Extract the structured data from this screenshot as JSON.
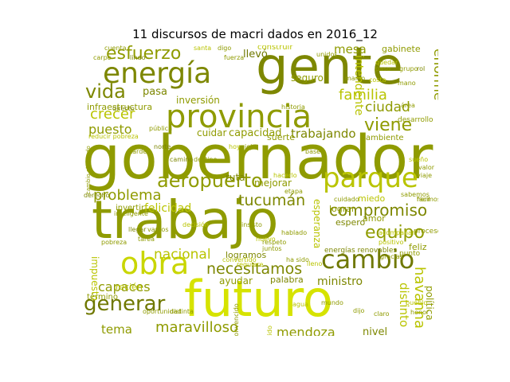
{
  "figure": {
    "title": "11 discursos de macri dados en 2016_12"
  },
  "words": [
    {
      "text": "gobernador",
      "color": "#8f9b00"
    },
    {
      "text": "trabajo",
      "color": "#8f9b00"
    },
    {
      "text": "gente",
      "color": "#7d8700"
    },
    {
      "text": "futuro",
      "color": "#d6e300"
    },
    {
      "text": "provincia",
      "color": "#8f9b00"
    },
    {
      "text": "energía",
      "color": "#7d8700"
    },
    {
      "text": "parque",
      "color": "#b9c400"
    },
    {
      "text": "obra",
      "color": "#c9d600"
    },
    {
      "text": "cambio",
      "color": "#6f7800"
    },
    {
      "text": "aeropuerto",
      "color": "#8f9b00"
    },
    {
      "text": "generar",
      "color": "#6f7800"
    },
    {
      "text": "esfuerzo",
      "color": "#8f9b00"
    },
    {
      "text": "vida",
      "color": "#7d8700"
    },
    {
      "text": "viene",
      "color": "#8f9b00"
    },
    {
      "text": "equipo",
      "color": "#8f9b00"
    },
    {
      "text": "compromiso",
      "color": "#7d8700"
    },
    {
      "text": "tucumán",
      "color": "#7d8700"
    },
    {
      "text": "necesitamos",
      "color": "#7d8700"
    },
    {
      "text": "problema",
      "color": "#8f9b00"
    },
    {
      "text": "maravilloso",
      "color": "#8f9b00"
    },
    {
      "text": "familia",
      "color": "#b9c400"
    },
    {
      "text": "crecer",
      "color": "#b9c400"
    },
    {
      "text": "nacional",
      "color": "#b9c400"
    },
    {
      "text": "ciudad",
      "color": "#8f9b00"
    },
    {
      "text": "enorme",
      "color": "#8f9b00"
    },
    {
      "text": "capaces",
      "color": "#8f9b00"
    },
    {
      "text": "mendoza",
      "color": "#8f9b00"
    },
    {
      "text": "ministro",
      "color": "#7d8700"
    },
    {
      "text": "tema",
      "color": "#8f9b00"
    },
    {
      "text": "puesto",
      "color": "#8f9b00"
    },
    {
      "text": "capacidad",
      "color": "#8f9b00"
    },
    {
      "text": "trabajando",
      "color": "#7d8700"
    },
    {
      "text": "inversión",
      "color": "#8f9b00"
    },
    {
      "text": "pasa",
      "color": "#7d8700"
    },
    {
      "text": "infraestructura",
      "color": "#8f9b00"
    },
    {
      "text": "llevó",
      "color": "#6f7800"
    },
    {
      "text": "mesa",
      "color": "#8f9b00"
    },
    {
      "text": "seguro",
      "color": "#8f9b00"
    },
    {
      "text": "gabinete",
      "color": "#8f9b00"
    },
    {
      "text": "intendente",
      "color": "#b9c400"
    },
    {
      "text": "claramente",
      "color": "#8f9b00"
    },
    {
      "text": "cuidar",
      "color": "#8f9b00"
    },
    {
      "text": "felicidad",
      "color": "#b9c400"
    },
    {
      "text": "mejorar",
      "color": "#8f9b00"
    },
    {
      "text": "ruta",
      "color": "#7d8700"
    },
    {
      "text": "esperanza",
      "color": "#b9c400"
    },
    {
      "text": "havanna",
      "color": "#b9c400"
    },
    {
      "text": "distinto",
      "color": "#b9c400"
    },
    {
      "text": "política",
      "color": "#8f9b00"
    },
    {
      "text": "responsable",
      "color": "#8f9b00"
    },
    {
      "text": "nivel",
      "color": "#7d8700"
    },
    {
      "text": "palabra",
      "color": "#7d8700"
    },
    {
      "text": "ayudar",
      "color": "#8f9b00"
    },
    {
      "text": "logramos",
      "color": "#7d8700"
    },
    {
      "text": "impuesto",
      "color": "#b9c400"
    },
    {
      "text": "invertir",
      "color": "#8f9b00"
    },
    {
      "text": "término",
      "color": "#8f9b00"
    },
    {
      "text": "recién",
      "color": "#b9c400"
    },
    {
      "text": "lograr",
      "color": "#8f9b00"
    },
    {
      "text": "espero",
      "color": "#7d8700"
    },
    {
      "text": "amor",
      "color": "#8f9b00"
    },
    {
      "text": "miedo",
      "color": "#b9c400"
    },
    {
      "text": "feliz",
      "color": "#8f9b00"
    },
    {
      "text": "proceso",
      "color": "#8f9b00"
    },
    {
      "text": "energías renovables",
      "color": "#7d8700"
    },
    {
      "text": "punto",
      "color": "#8f9b00"
    },
    {
      "text": "derecho",
      "color": "#7d8700"
    },
    {
      "text": "ambiente",
      "color": "#8f9b00"
    },
    {
      "text": "desarrollo",
      "color": "#8f9b00"
    },
    {
      "text": "historia",
      "color": "#8f9b00"
    },
    {
      "text": "construir",
      "color": "#b9c400"
    },
    {
      "text": "suerte",
      "color": "#8f9b00"
    },
    {
      "text": "etapa",
      "color": "#8f9b00"
    },
    {
      "text": "pobreza",
      "color": "#8f9b00"
    },
    {
      "text": "reducir pobreza",
      "color": "#b9c400"
    },
    {
      "text": "pública",
      "color": "#8f9b00"
    },
    {
      "text": "convertido",
      "color": "#b9c400"
    },
    {
      "text": "distinta",
      "color": "#8f9b00"
    },
    {
      "text": "conocido",
      "color": "#b9c400"
    },
    {
      "text": "hablado",
      "color": "#8f9b00"
    },
    {
      "text": "hacerlo",
      "color": "#b9c400"
    },
    {
      "text": "requiere",
      "color": "#b9c400"
    },
    {
      "text": "cuidado",
      "color": "#8f9b00"
    },
    {
      "text": "oportunidad",
      "color": "#8f9b00"
    },
    {
      "text": "inteligente",
      "color": "#8f9b00"
    },
    {
      "text": "directo",
      "color": "#7d8700"
    },
    {
      "text": "cambio el mundo",
      "color": "#8f9b00"
    },
    {
      "text": "fácil",
      "color": "#8f9b00"
    },
    {
      "text": "lleno",
      "color": "#b9c400"
    },
    {
      "text": "carpo",
      "color": "#8f9b00"
    },
    {
      "text": "cuenta",
      "color": "#8f9b00"
    },
    {
      "text": "hermosa",
      "color": "#8f9b00"
    },
    {
      "text": "convencido",
      "color": "#8f9b00"
    },
    {
      "text": "acompañar",
      "color": "#b9c400"
    },
    {
      "text": "positivo",
      "color": "#b9c400"
    },
    {
      "text": "tarea",
      "color": "#8f9b00"
    },
    {
      "text": "llegar",
      "color": "#7d8700"
    },
    {
      "text": "vamos",
      "color": "#8f9b00"
    },
    {
      "text": "nuevo",
      "color": "#b9c400"
    },
    {
      "text": "insisto",
      "color": "#8f9b00"
    },
    {
      "text": "juntos",
      "color": "#8f9b00"
    },
    {
      "text": "gracias",
      "color": "#8f9b00"
    },
    {
      "text": "decisión",
      "color": "#b9c400"
    },
    {
      "text": "respeto",
      "color": "#8f9b00"
    },
    {
      "text": "ha sido",
      "color": "#8f9b00"
    },
    {
      "text": "camino",
      "color": "#7d8700"
    },
    {
      "text": "destino",
      "color": "#8f9b00"
    },
    {
      "text": "marco",
      "color": "#8f9b00"
    },
    {
      "text": "costa",
      "color": "#b9c400"
    },
    {
      "text": "mano",
      "color": "#8f9b00"
    },
    {
      "text": "base",
      "color": "#8f9b00"
    },
    {
      "text": "hoy",
      "color": "#b9c400"
    },
    {
      "text": "jeje",
      "color": "#8f9b00"
    },
    {
      "text": "tarde",
      "color": "#8f9b00"
    },
    {
      "text": "norte",
      "color": "#7d8700"
    },
    {
      "text": "sabemos",
      "color": "#8f9b00"
    },
    {
      "text": "pueblo",
      "color": "#b9c400"
    },
    {
      "text": "honor",
      "color": "#8f9b00"
    },
    {
      "text": "mundo",
      "color": "#8f9b00"
    },
    {
      "text": "agua",
      "color": "#b9c400"
    },
    {
      "text": "dijo",
      "color": "#8f9b00"
    },
    {
      "text": "claro",
      "color": "#8f9b00"
    },
    {
      "text": "lindo",
      "color": "#7d8700"
    },
    {
      "text": "fuerza",
      "color": "#8f9b00"
    },
    {
      "text": "santa",
      "color": "#b9c400"
    },
    {
      "text": "digo",
      "color": "#8f9b00"
    },
    {
      "text": "unidos",
      "color": "#8f9b00"
    },
    {
      "text": "quedar",
      "color": "#b9c400"
    },
    {
      "text": "paso",
      "color": "#8f9b00"
    },
    {
      "text": "grupo",
      "color": "#8f9b00"
    },
    {
      "text": "rol",
      "color": "#7d8700"
    },
    {
      "text": "área",
      "color": "#8f9b00"
    },
    {
      "text": "sueño",
      "color": "#b9c400"
    },
    {
      "text": "valor",
      "color": "#8f9b00"
    },
    {
      "text": "viaje",
      "color": "#8f9b00"
    }
  ]
}
